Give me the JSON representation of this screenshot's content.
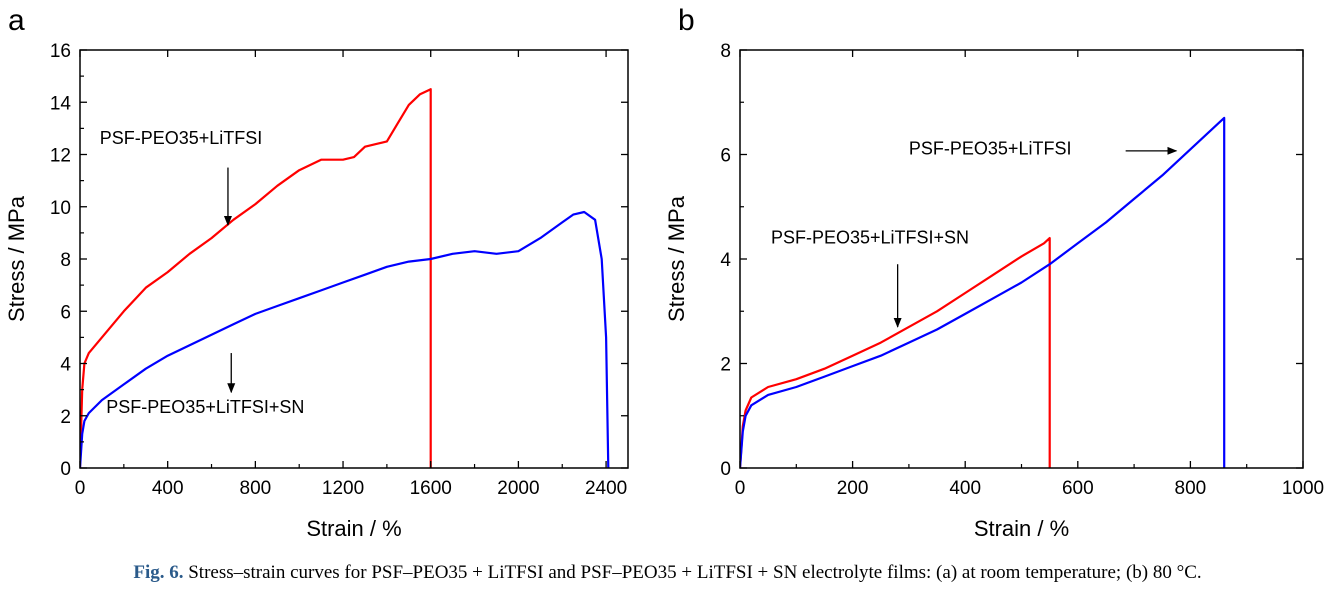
{
  "panels": [
    {
      "panel_label": "a",
      "chart_data": {
        "type": "line",
        "xlabel": "Strain / %",
        "ylabel": "Stress / MPa",
        "xlim": [
          0,
          2500
        ],
        "ylim": [
          0,
          16
        ],
        "xticks": [
          0,
          400,
          800,
          1200,
          1600,
          2000,
          2400
        ],
        "yticks": [
          0,
          2,
          4,
          6,
          8,
          10,
          12,
          14,
          16
        ],
        "grid": false,
        "series": [
          {
            "name": "PSF-PEO35+LiTFSI",
            "color": "#ff0000",
            "x": [
              0,
              10,
              20,
              40,
              100,
              200,
              300,
              400,
              500,
              600,
              700,
              800,
              900,
              1000,
              1100,
              1200,
              1250,
              1300,
              1350,
              1400,
              1450,
              1500,
              1550,
              1600,
              1600
            ],
            "y": [
              0,
              3.0,
              4.0,
              4.4,
              5.0,
              6.0,
              6.9,
              7.5,
              8.2,
              8.8,
              9.5,
              10.1,
              10.8,
              11.4,
              11.8,
              11.8,
              11.9,
              12.3,
              12.4,
              12.5,
              13.2,
              13.9,
              14.3,
              14.5,
              0
            ]
          },
          {
            "name": "PSF-PEO35+LiTFSI+SN",
            "color": "#0000ff",
            "x": [
              0,
              10,
              20,
              40,
              100,
              200,
              300,
              400,
              500,
              600,
              700,
              800,
              900,
              1000,
              1100,
              1200,
              1300,
              1400,
              1500,
              1600,
              1700,
              1800,
              1900,
              2000,
              2100,
              2200,
              2250,
              2300,
              2350,
              2380,
              2400,
              2410
            ],
            "y": [
              0,
              1.3,
              1.8,
              2.1,
              2.6,
              3.2,
              3.8,
              4.3,
              4.7,
              5.1,
              5.5,
              5.9,
              6.2,
              6.5,
              6.8,
              7.1,
              7.4,
              7.7,
              7.9,
              8.0,
              8.2,
              8.3,
              8.2,
              8.3,
              8.8,
              9.4,
              9.7,
              9.8,
              9.5,
              8.0,
              5.0,
              0
            ]
          }
        ],
        "annotations": [
          {
            "text": "PSF-PEO35+LiTFSI",
            "x": 90,
            "y": 12.4,
            "arrow_from": [
              675,
              11.5
            ],
            "arrow_to": [
              675,
              9.3
            ]
          },
          {
            "text": "PSF-PEO35+LiTFSI+SN",
            "x": 120,
            "y": 2.1,
            "arrow_from": [
              690,
              4.4
            ],
            "arrow_to": [
              690,
              2.9
            ]
          }
        ]
      }
    },
    {
      "panel_label": "b",
      "chart_data": {
        "type": "line",
        "xlabel": "Strain / %",
        "ylabel": "Stress / MPa",
        "xlim": [
          0,
          1000
        ],
        "ylim": [
          0,
          8
        ],
        "xticks": [
          0,
          200,
          400,
          600,
          800,
          1000
        ],
        "yticks": [
          0,
          2,
          4,
          6,
          8
        ],
        "grid": false,
        "series": [
          {
            "name": "PSF-PEO35+LiTFSI+SN",
            "color": "#ff0000",
            "x": [
              0,
              5,
              10,
              20,
              50,
              100,
              150,
              200,
              250,
              300,
              350,
              400,
              450,
              500,
              540,
              550,
              550
            ],
            "y": [
              0,
              0.8,
              1.1,
              1.35,
              1.55,
              1.7,
              1.9,
              2.15,
              2.4,
              2.7,
              3.0,
              3.35,
              3.7,
              4.05,
              4.3,
              4.4,
              0
            ]
          },
          {
            "name": "PSF-PEO35+LiTFSI",
            "color": "#0000ff",
            "x": [
              0,
              5,
              10,
              20,
              50,
              100,
              150,
              200,
              250,
              300,
              350,
              400,
              450,
              500,
              550,
              600,
              650,
              700,
              750,
              800,
              850,
              860,
              860
            ],
            "y": [
              0,
              0.7,
              1.0,
              1.2,
              1.4,
              1.55,
              1.75,
              1.95,
              2.15,
              2.4,
              2.65,
              2.95,
              3.25,
              3.55,
              3.9,
              4.3,
              4.7,
              5.15,
              5.6,
              6.1,
              6.6,
              6.7,
              0
            ]
          }
        ],
        "annotations": [
          {
            "text": "PSF-PEO35+LiTFSI",
            "x": 300,
            "y": 6.0,
            "arrow_from": [
              685,
              6.07
            ],
            "arrow_to": [
              775,
              6.07
            ]
          },
          {
            "text": "PSF-PEO35+LiTFSI+SN",
            "x": 55,
            "y": 4.3,
            "arrow_from": [
              280,
              3.9
            ],
            "arrow_to": [
              280,
              2.7
            ]
          }
        ]
      }
    }
  ],
  "caption": {
    "label": "Fig. 6.",
    "text": "Stress–strain curves for PSF–PEO35 + LiTFSI and PSF–PEO35 + LiTFSI + SN electrolyte films: (a) at room temperature; (b) 80 °C."
  }
}
